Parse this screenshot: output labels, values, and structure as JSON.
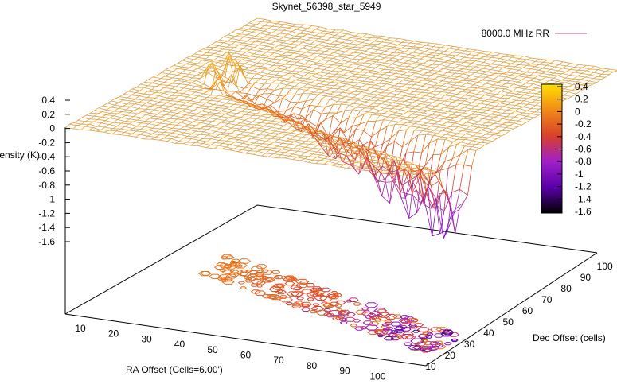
{
  "chart_data": {
    "type": "surface3d",
    "title": "Skynet_56398_star_5949",
    "legend": {
      "label": "8000.0 MHz RR",
      "placement": "top-right"
    },
    "xlabel": "RA Offset (Cells=6.00')",
    "ylabel": "Dec Offset (cells)",
    "zlabel": "Intensity (K)",
    "x_ticks": [
      "10",
      "20",
      "30",
      "40",
      "50",
      "60",
      "70",
      "80",
      "90",
      "100"
    ],
    "y_ticks": [
      "10",
      "20",
      "30",
      "40",
      "50",
      "60",
      "70",
      "80",
      "90",
      "100"
    ],
    "z_ticks": [
      "0.4",
      "0.2",
      "0",
      "-0.2",
      "-0.4",
      "-0.6",
      "-0.8",
      "-1",
      "-1.2",
      "-1.4",
      "-1.6"
    ],
    "colorbar_ticks": [
      "0.4",
      "0.2",
      "0",
      "-0.2",
      "-0.4",
      "-0.6",
      "-0.8",
      "-1",
      "-1.2",
      "-1.4",
      "-1.6"
    ],
    "zlim": [
      -1.6,
      0.4
    ],
    "colormap_stops": [
      "#000000",
      "#5a00a8",
      "#a020c8",
      "#d8402a",
      "#f08a18",
      "#ffe000"
    ],
    "surface_color": "#e3a44a",
    "legend_line_color": "#c27ba0"
  }
}
